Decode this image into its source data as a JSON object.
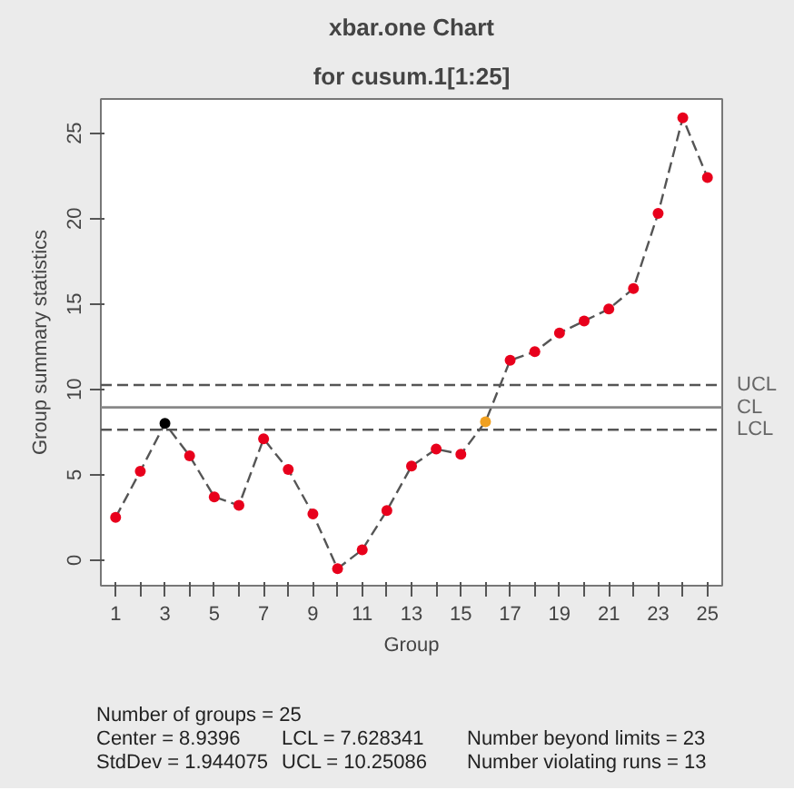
{
  "chart_data": {
    "type": "line",
    "title": "xbar.one Chart",
    "subtitle": "for cusum.1[1:25]",
    "xlabel": "Group",
    "ylabel": "Group summary statistics",
    "x": [
      1,
      2,
      3,
      4,
      5,
      6,
      7,
      8,
      9,
      10,
      11,
      12,
      13,
      14,
      15,
      16,
      17,
      18,
      19,
      20,
      21,
      22,
      23,
      24,
      25
    ],
    "series": [
      {
        "color": "#555555",
        "colors": [
          "#e8001c",
          "#e8001c",
          "#000000",
          "#e8001c",
          "#e8001c",
          "#e8001c",
          "#e8001c",
          "#e8001c",
          "#e8001c",
          "#e8001c",
          "#e8001c",
          "#e8001c",
          "#e8001c",
          "#e8001c",
          "#e8001c",
          "#f0a020",
          "#e8001c",
          "#e8001c",
          "#e8001c",
          "#e8001c",
          "#e8001c",
          "#e8001c",
          "#e8001c",
          "#e8001c",
          "#e8001c"
        ],
        "values": [
          2.5,
          5.2,
          8.0,
          6.1,
          3.7,
          3.2,
          7.1,
          5.3,
          2.7,
          -0.5,
          0.6,
          2.9,
          5.5,
          6.5,
          6.2,
          8.1,
          11.7,
          12.2,
          13.3,
          14.0,
          14.7,
          15.9,
          20.3,
          25.9,
          22.4
        ]
      }
    ],
    "xlim": [
      0.4,
      25.6
    ],
    "ylim": [
      -1.5,
      27
    ],
    "xticks": [
      1,
      {
        "value": 2,
        "label": null
      },
      3,
      {
        "value": 4,
        "label": null
      },
      5,
      {
        "value": 6,
        "label": null
      },
      7,
      {
        "value": 8,
        "label": null
      },
      9,
      {
        "value": 10,
        "label": null
      },
      11,
      {
        "value": 12,
        "label": null
      },
      13,
      {
        "value": 14,
        "label": null
      },
      15,
      {
        "value": 16,
        "label": null
      },
      17,
      {
        "value": 18,
        "label": null
      },
      19,
      {
        "value": 20,
        "label": null
      },
      21,
      {
        "value": 22,
        "label": null
      },
      23,
      {
        "value": 24,
        "label": null
      },
      25
    ],
    "yticks": [
      0,
      5,
      10,
      15,
      20,
      25
    ],
    "ref_lines": [
      {
        "axis": "y",
        "value": 10.25086,
        "label": "UCL",
        "line_style": "dashed",
        "color": "#555555"
      },
      {
        "axis": "y",
        "value": 8.9396,
        "label": "CL",
        "line_style": "solid",
        "color": "#888888"
      },
      {
        "axis": "y",
        "value": 7.628341,
        "label": "LCL",
        "line_style": "dashed",
        "color": "#555555"
      }
    ],
    "annotations": [
      "Number of groups = 25",
      "Center = 8.9396",
      "StdDev = 1.944075",
      "LCL = 7.628341",
      "UCL = 10.25086",
      "Number beyond limits = 23",
      "Number violating runs = 13"
    ],
    "grid": false,
    "marker": "circle",
    "line_style": "dashed"
  }
}
